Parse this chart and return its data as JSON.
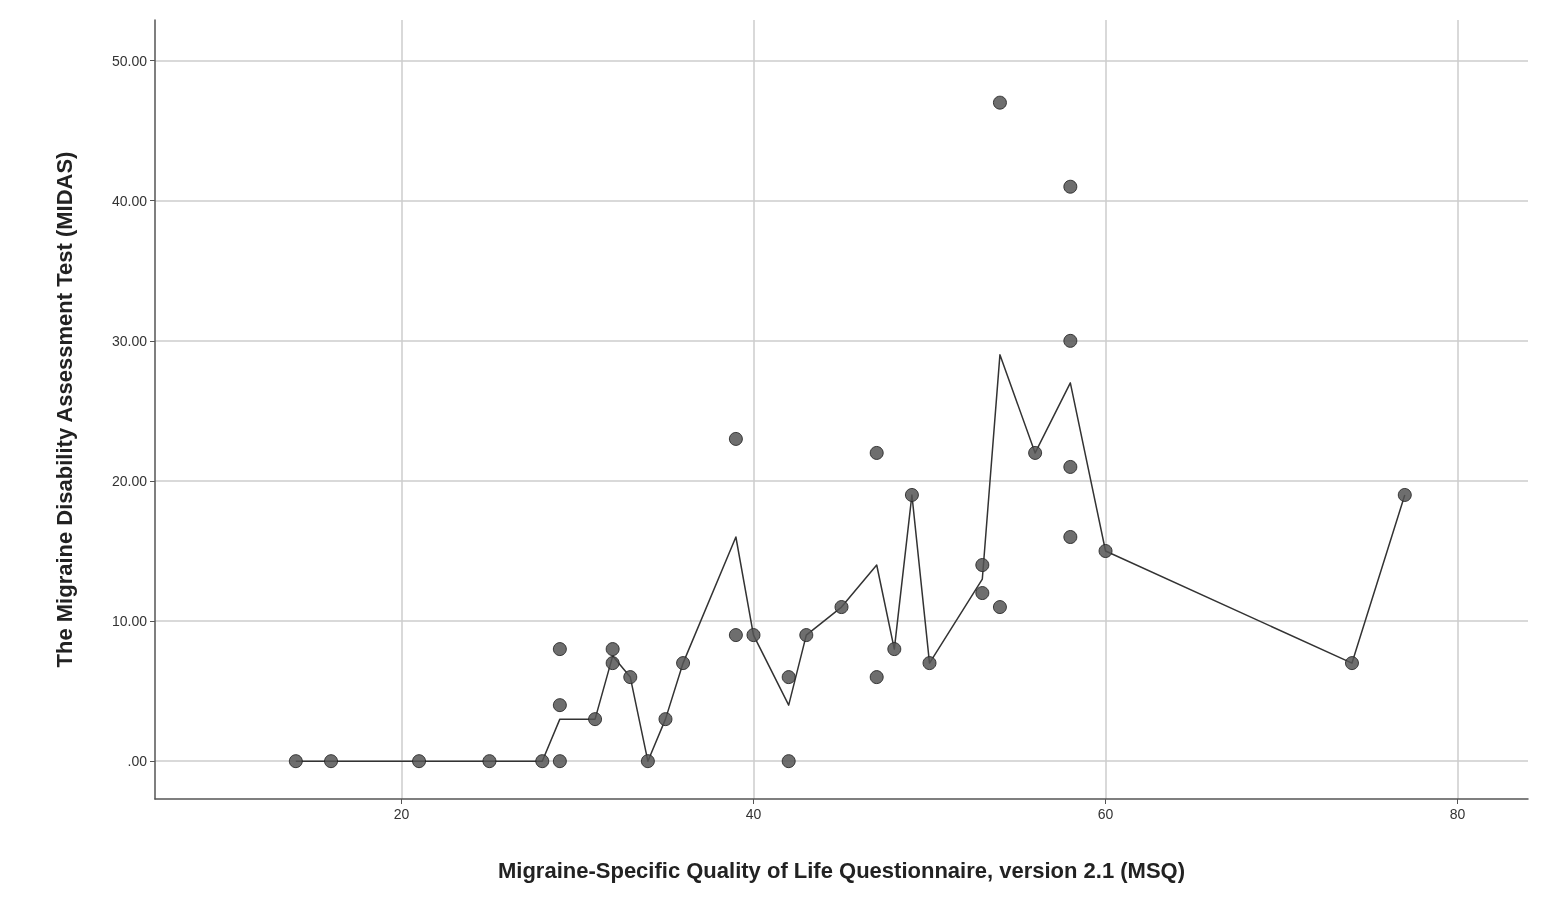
{
  "chart_data": {
    "type": "scatter",
    "xlabel": "Migraine-Specific Quality of Life Questionnaire, version 2.1 (MSQ)",
    "ylabel": "The Migraine Disability Assessment Test (MIDAS)",
    "xlim": [
      6,
      84
    ],
    "xticks": [
      20,
      40,
      60,
      80
    ],
    "ylim": [
      -2.7,
      52.9
    ],
    "yticks": [
      {
        "value": 0,
        "label": ".00"
      },
      {
        "value": 10,
        "label": "10.00"
      },
      {
        "value": 20,
        "label": "20.00"
      },
      {
        "value": 30,
        "label": "30.00"
      },
      {
        "value": 40,
        "label": "40.00"
      },
      {
        "value": 50,
        "label": "50.00"
      }
    ],
    "grid": true,
    "series": [
      {
        "color": "#555555",
        "marker": "circle",
        "x": [
          14,
          16,
          21,
          25,
          28,
          29,
          29,
          29,
          31,
          32,
          32,
          33,
          34,
          35,
          36,
          39,
          39,
          40,
          42,
          42,
          43,
          45,
          47,
          47,
          48,
          49,
          50,
          53,
          53,
          54,
          54,
          56,
          58,
          58,
          58,
          58,
          60,
          74,
          77
        ],
        "values": [
          0,
          0,
          0,
          0,
          0,
          8,
          4,
          0,
          3,
          8,
          7,
          6,
          0,
          3,
          7,
          23,
          9,
          9,
          6,
          0,
          9,
          11,
          22,
          6,
          8,
          19,
          7,
          12,
          14,
          47,
          11,
          22,
          41,
          30,
          21,
          16,
          15,
          7,
          19
        ]
      },
      {
        "type": "line",
        "color": "#333333",
        "marker": "none",
        "line_style": "solid",
        "x": [
          14,
          16,
          21,
          25,
          28,
          29,
          31,
          32,
          33,
          34,
          35,
          36,
          39,
          40,
          42,
          43,
          45,
          47,
          48,
          49,
          50,
          53,
          54,
          56,
          58,
          60,
          74,
          77
        ],
        "values": [
          0,
          0,
          0,
          0,
          0,
          3,
          3,
          7.5,
          6,
          0,
          3,
          7,
          16,
          9,
          4,
          9,
          11,
          14,
          8,
          19,
          7,
          13,
          29,
          22,
          27,
          15,
          7,
          19
        ]
      }
    ]
  }
}
